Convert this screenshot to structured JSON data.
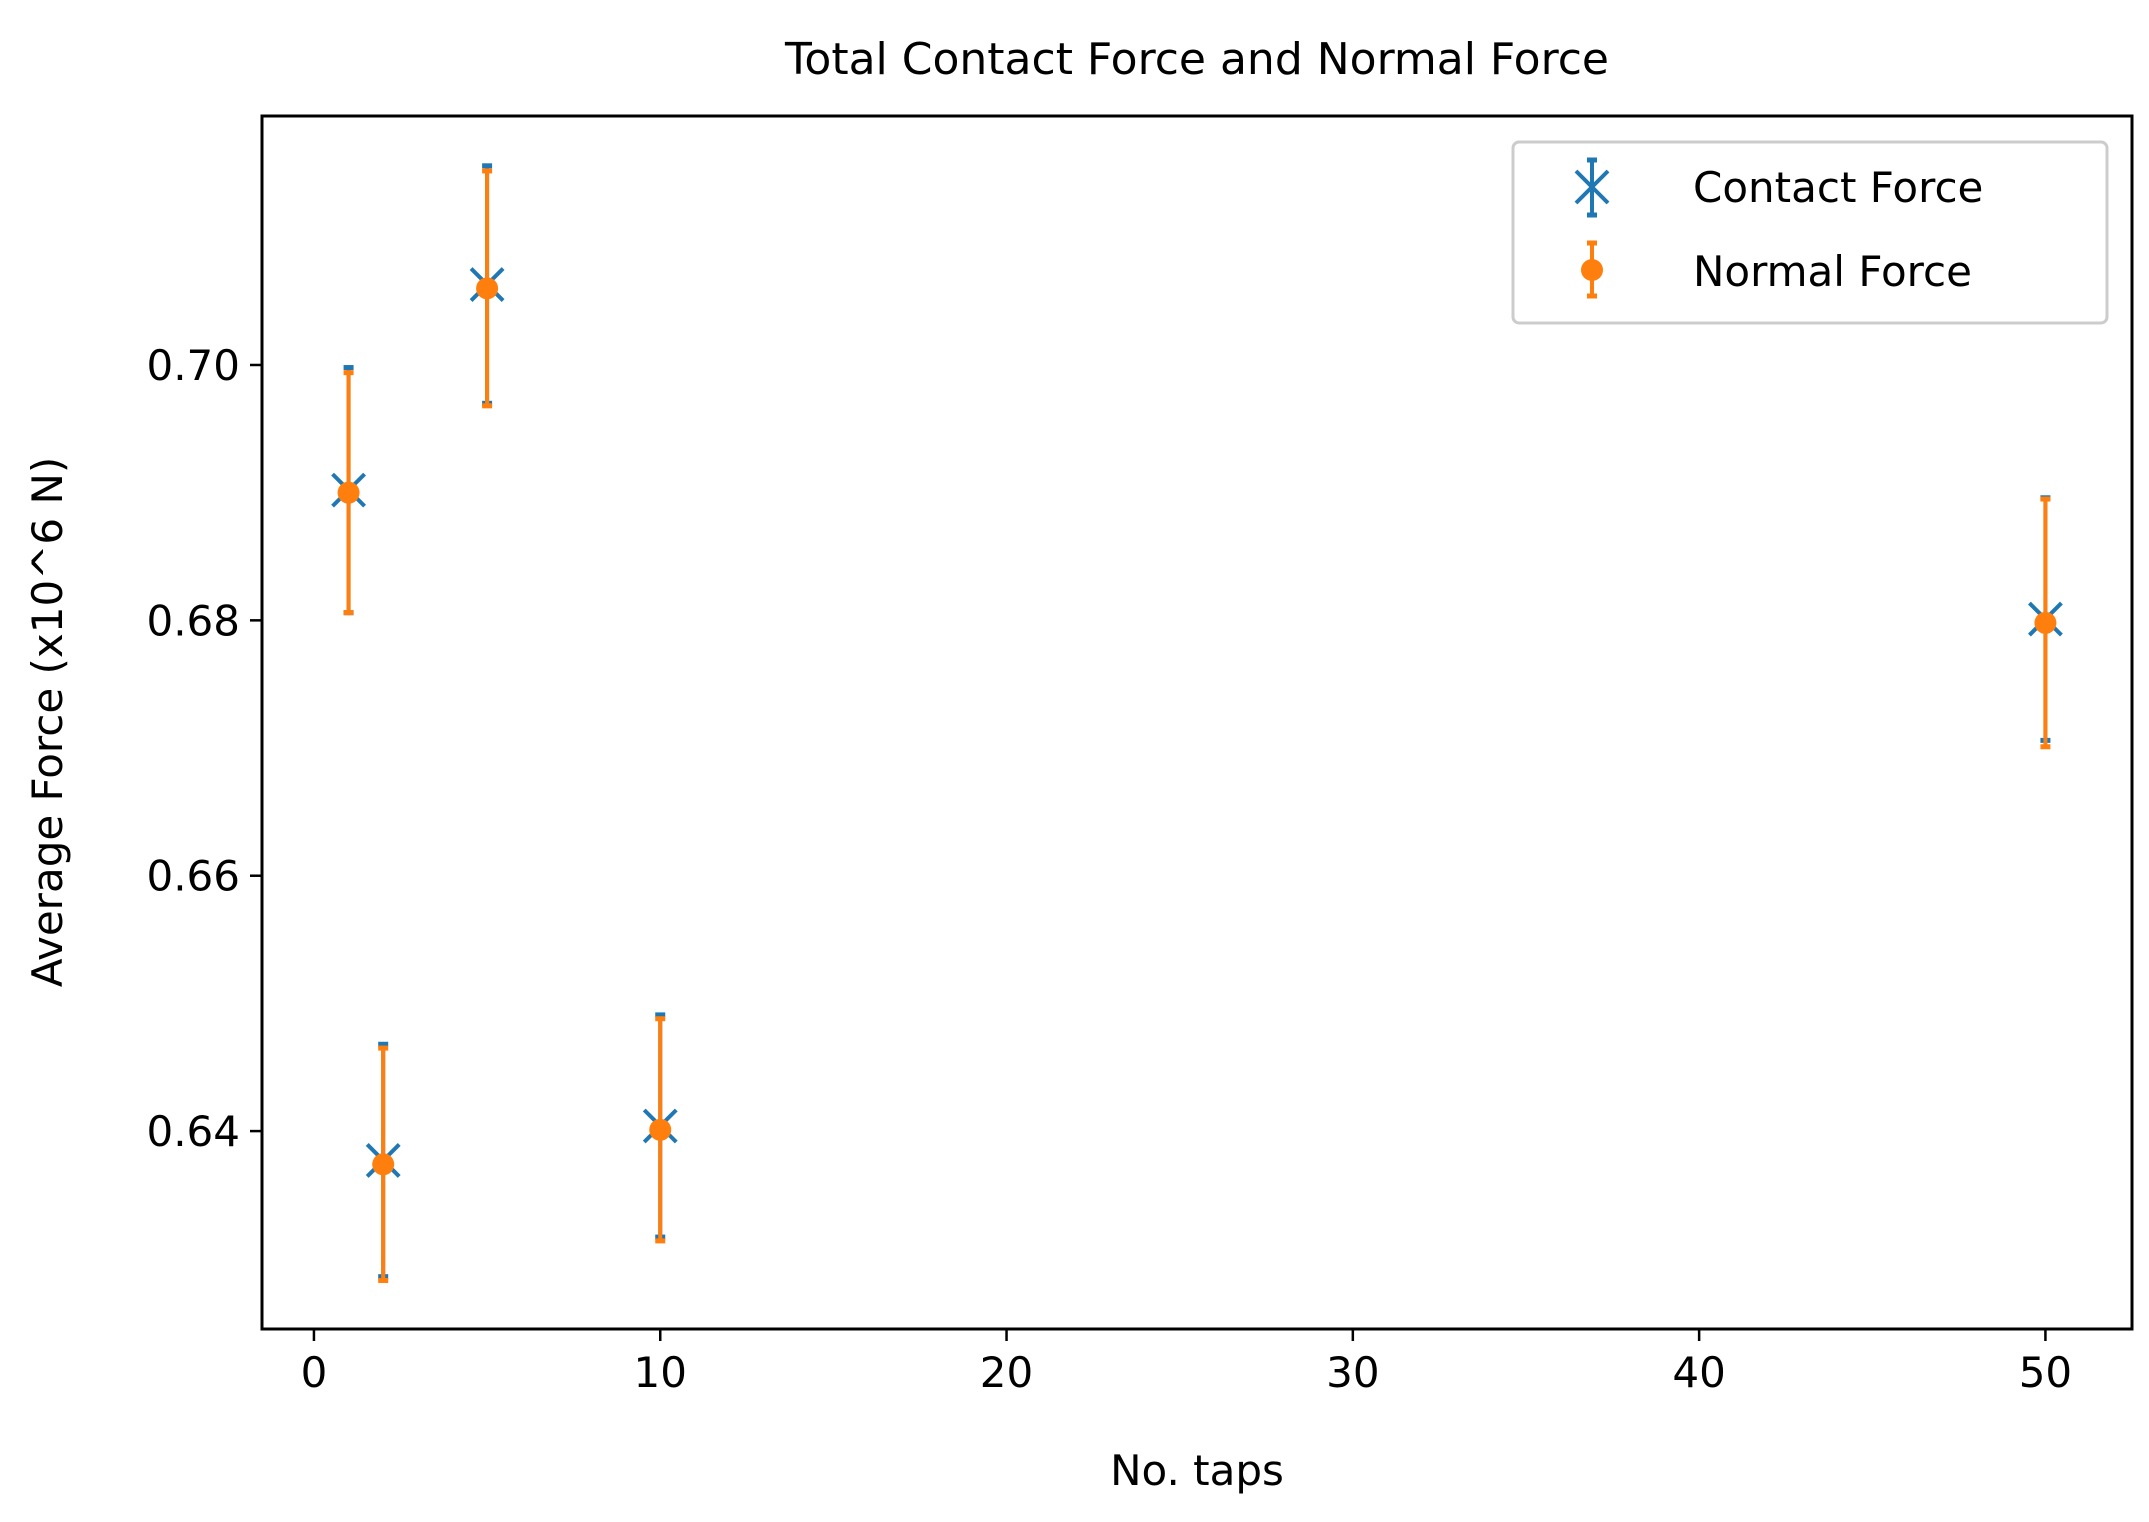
{
  "chart_data": {
    "type": "scatter",
    "title": "Total Contact Force and Normal Force",
    "xlabel": "No. taps",
    "ylabel": "Average Force (x10^6 N)",
    "xlim": [
      -1.5,
      52.5
    ],
    "ylim": [
      0.6245,
      0.7195
    ],
    "xticks": [
      0,
      10,
      20,
      30,
      40,
      50
    ],
    "yticks": [
      0.64,
      0.66,
      0.68,
      0.7
    ],
    "ytick_labels": [
      "0.64",
      "0.66",
      "0.68",
      "0.70"
    ],
    "grid": false,
    "legend_position": "top-right",
    "series": [
      {
        "name": "Contact Force",
        "marker": "x",
        "color": "#1f77b4",
        "x": [
          1,
          2,
          5,
          10,
          50
        ],
        "y": [
          0.6902,
          0.6377,
          0.7063,
          0.6404,
          0.6801
        ],
        "err": [
          0.0096,
          0.0091,
          0.0093,
          0.0087,
          0.0095
        ]
      },
      {
        "name": "Normal Force",
        "marker": "o",
        "color": "#ff7f0e",
        "x": [
          1,
          2,
          5,
          10,
          50
        ],
        "y": [
          0.69,
          0.6374,
          0.706,
          0.6401,
          0.6798
        ],
        "err": [
          0.0094,
          0.0091,
          0.0092,
          0.0087,
          0.0097
        ]
      }
    ]
  }
}
